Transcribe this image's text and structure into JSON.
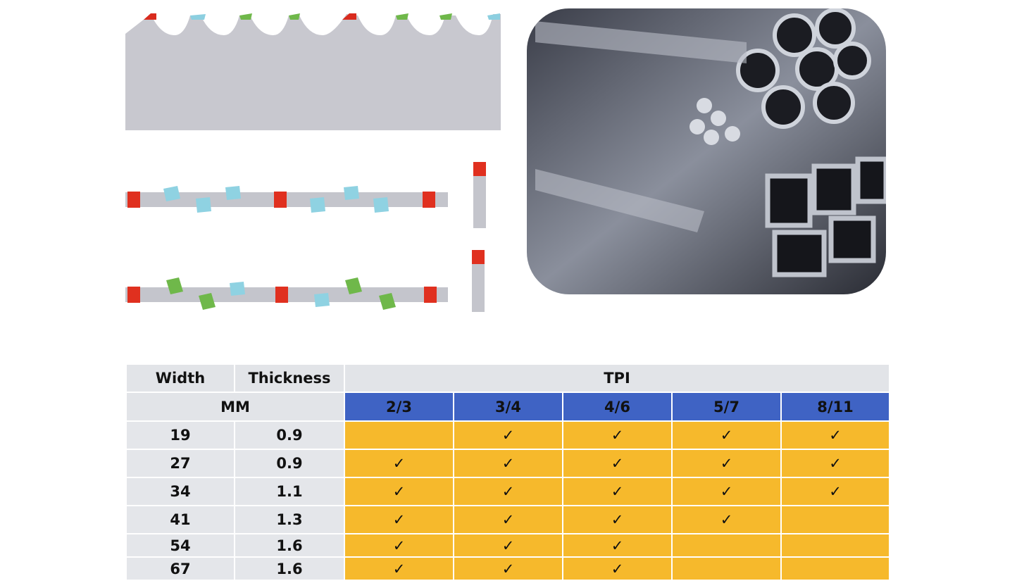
{
  "table": {
    "header": {
      "width": "Width",
      "thickness": "Thickness",
      "tpi": "TPI",
      "unit": "MM",
      "tpi_columns": [
        "2/3",
        "3/4",
        "4/6",
        "5/7",
        "8/11"
      ]
    },
    "rows": [
      {
        "width": "19",
        "thickness": "0.9",
        "tpi": [
          null,
          "✓",
          "✓",
          "✓",
          "✓"
        ]
      },
      {
        "width": "27",
        "thickness": "0.9",
        "tpi": [
          "✓",
          "✓",
          "✓",
          "✓",
          "✓"
        ]
      },
      {
        "width": "34",
        "thickness": "1.1",
        "tpi": [
          "✓",
          "✓",
          "✓",
          "✓",
          "✓"
        ]
      },
      {
        "width": "41",
        "thickness": "1.3",
        "tpi": [
          "✓",
          "✓",
          "✓",
          "✓",
          null
        ]
      },
      {
        "width": "54",
        "thickness": "1.6",
        "tpi": [
          "✓",
          "✓",
          "✓",
          null,
          null
        ]
      },
      {
        "width": "67",
        "thickness": "1.6",
        "tpi": [
          "✓",
          "✓",
          "✓",
          null,
          null
        ]
      }
    ]
  }
}
